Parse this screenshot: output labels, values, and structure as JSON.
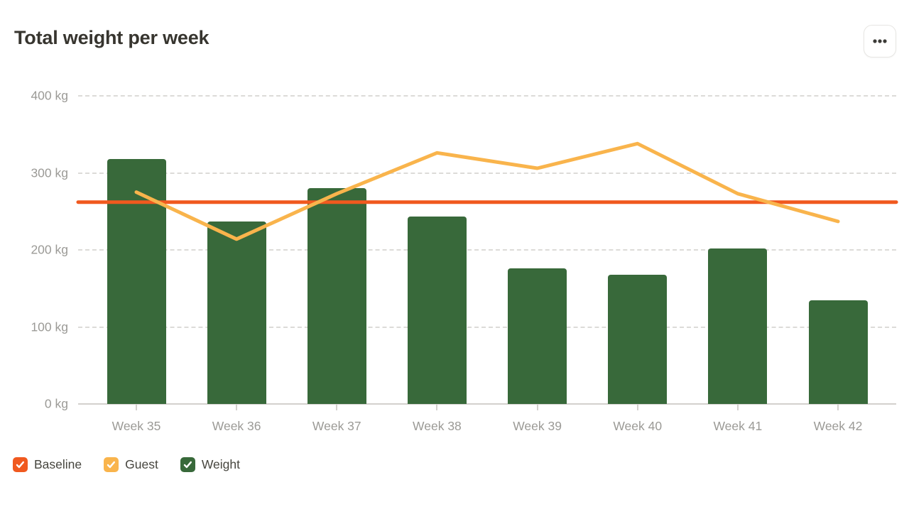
{
  "header": {
    "title": "Total weight per week"
  },
  "chart_data": {
    "type": "bar",
    "title": "Total weight per week",
    "categories": [
      "Week 35",
      "Week 36",
      "Week 37",
      "Week 38",
      "Week 39",
      "Week 40",
      "Week 41",
      "Week 42"
    ],
    "series": [
      {
        "name": "Baseline",
        "type": "line",
        "color": "#f0591f",
        "constant": true,
        "values": [
          262,
          262,
          262,
          262,
          262,
          262,
          262,
          262
        ]
      },
      {
        "name": "Guest",
        "type": "line",
        "color": "#f9b44c",
        "values": [
          275,
          214,
          273,
          326,
          306,
          338,
          273,
          237
        ]
      },
      {
        "name": "Weight",
        "type": "bar",
        "color": "#38693a",
        "values": [
          318,
          237,
          280,
          243,
          176,
          168,
          202,
          135
        ]
      }
    ],
    "ylim": [
      0,
      400
    ],
    "yticks": [
      0,
      100,
      200,
      300,
      400
    ],
    "ytick_labels": [
      "0 kg",
      "100 kg",
      "200 kg",
      "300 kg",
      "400 kg"
    ],
    "unit": "kg",
    "grid": "horizontal-dashed",
    "legend_position": "bottom-left"
  },
  "legend": {
    "items": [
      {
        "label": "Baseline",
        "color": "#f0591f",
        "checked": true
      },
      {
        "label": "Guest",
        "color": "#f9b44c",
        "checked": true
      },
      {
        "label": "Weight",
        "color": "#38693a",
        "checked": true
      }
    ]
  }
}
